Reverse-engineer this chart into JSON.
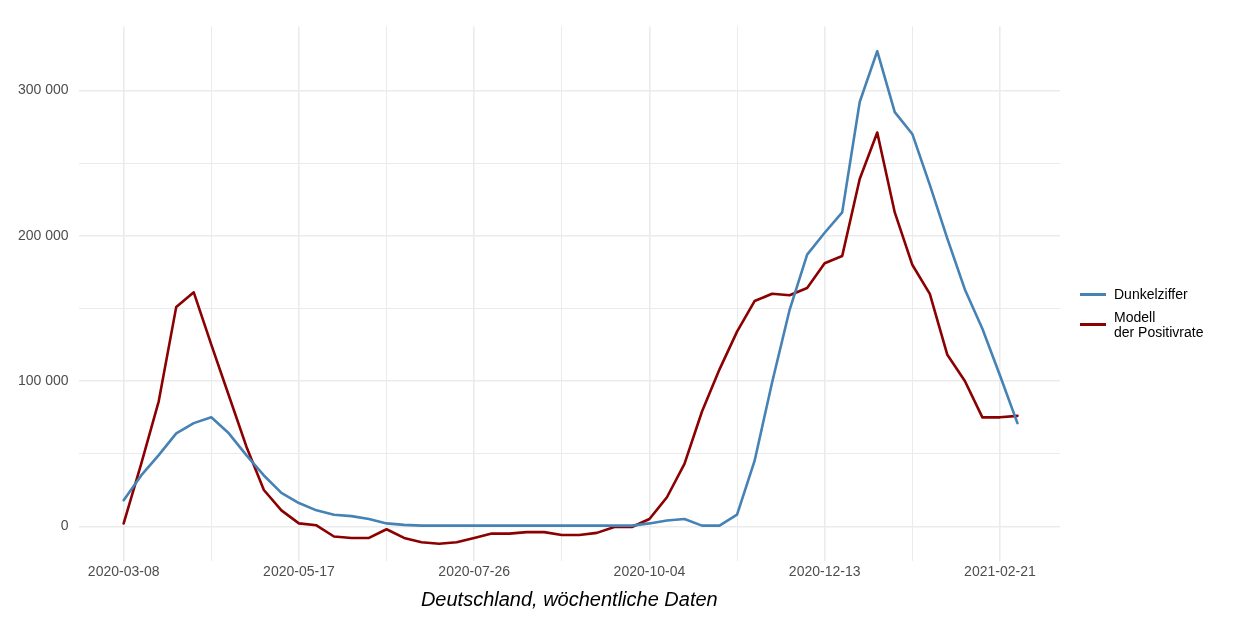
{
  "chart_data": {
    "type": "line",
    "xlabel": "Deutschland, wöchentliche Daten",
    "x": [
      "2020-03-08",
      "2020-03-15",
      "2020-03-22",
      "2020-03-29",
      "2020-04-05",
      "2020-04-12",
      "2020-04-19",
      "2020-04-26",
      "2020-05-03",
      "2020-05-10",
      "2020-05-17",
      "2020-05-24",
      "2020-05-31",
      "2020-06-07",
      "2020-06-14",
      "2020-06-21",
      "2020-06-28",
      "2020-07-05",
      "2020-07-12",
      "2020-07-19",
      "2020-07-26",
      "2020-08-02",
      "2020-08-09",
      "2020-08-16",
      "2020-08-23",
      "2020-08-30",
      "2020-09-06",
      "2020-09-13",
      "2020-09-20",
      "2020-09-27",
      "2020-10-04",
      "2020-10-11",
      "2020-10-18",
      "2020-10-25",
      "2020-11-01",
      "2020-11-08",
      "2020-11-15",
      "2020-11-22",
      "2020-11-29",
      "2020-12-06",
      "2020-12-13",
      "2020-12-20",
      "2020-12-27",
      "2021-01-03",
      "2021-01-10",
      "2021-01-17",
      "2021-01-24",
      "2021-01-31",
      "2021-02-07",
      "2021-02-14",
      "2021-02-21",
      "2021-02-28"
    ],
    "series": [
      {
        "name": "Dunkelziffer",
        "color": "#4682b4",
        "values": [
          18000,
          35000,
          49000,
          64000,
          71000,
          75000,
          64000,
          49000,
          35000,
          23000,
          16000,
          11000,
          8000,
          7000,
          5000,
          2000,
          1000,
          500,
          500,
          500,
          500,
          500,
          500,
          500,
          500,
          500,
          500,
          500,
          500,
          500,
          2000,
          4000,
          5000,
          500,
          500,
          8000,
          45000,
          99000,
          149000,
          187000,
          202000,
          216000,
          292000,
          327000,
          285000,
          270000,
          235000,
          198000,
          163000,
          136000,
          104000,
          71000
        ]
      },
      {
        "name": "Modell\nder Positivrate",
        "color": "#8b0000",
        "values": [
          2000,
          43000,
          86000,
          151000,
          161000,
          125000,
          90000,
          55000,
          25000,
          11000,
          2000,
          700,
          -7000,
          -8000,
          -8000,
          -2000,
          -8000,
          -11000,
          -12000,
          -11000,
          -8000,
          -5000,
          -5000,
          -4000,
          -4000,
          -6000,
          -6000,
          -4500,
          -500,
          -500,
          5000,
          20000,
          43000,
          79000,
          108000,
          134000,
          155000,
          160000,
          159000,
          164000,
          181000,
          186000,
          239000,
          271000,
          216000,
          180000,
          160000,
          118000,
          100000,
          75000,
          75000,
          76000
        ]
      }
    ],
    "xlim": [
      "2020-02-19",
      "2021-03-17"
    ],
    "xticks": [
      "2020-03-08",
      {
        "value": "2020-04-12",
        "label": null
      },
      "2020-05-17",
      {
        "value": "2020-06-21",
        "label": null
      },
      "2020-07-26",
      {
        "value": "2020-08-30",
        "label": null
      },
      "2020-10-04",
      {
        "value": "2020-11-08",
        "label": null
      },
      "2020-12-13",
      {
        "value": "2021-01-17",
        "label": null
      },
      "2021-02-21"
    ],
    "ylim": [
      -24000,
      344000
    ],
    "yticks": [
      {
        "value": 0,
        "label": "0"
      },
      {
        "value": 50000,
        "label": null
      },
      {
        "value": 100000,
        "label": "100 000"
      },
      {
        "value": 150000,
        "label": null
      },
      {
        "value": 200000,
        "label": "200 000"
      },
      {
        "value": 250000,
        "label": null
      },
      {
        "value": 300000,
        "label": "300 000"
      }
    ],
    "grid": true,
    "legend": "right",
    "marker": "none",
    "line_style": "solid"
  }
}
